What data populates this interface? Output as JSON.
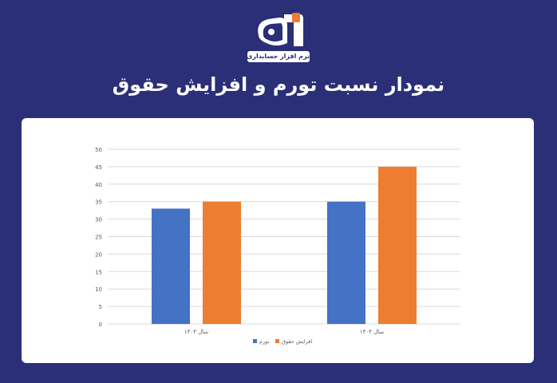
{
  "header": {
    "logo_icon": "fa-letters-logo-icon",
    "logo_caption": "نرم افزار حسابداری",
    "title": "نمودار نسبت تورم و افزایش حقوق"
  },
  "colors": {
    "background": "#2b2f78",
    "accent_orange": "#ed7d31",
    "accent_blue": "#4472c4"
  },
  "chart_data": {
    "type": "bar",
    "categories": [
      "سال ۱۴۰۳",
      "سال ۱۴۰۴"
    ],
    "series": [
      {
        "name": "تورم",
        "values": [
          33,
          35
        ],
        "color": "#4472c4"
      },
      {
        "name": "افزایش حقوق",
        "values": [
          35,
          45
        ],
        "color": "#ed7d31"
      }
    ],
    "ylim": [
      0,
      50
    ],
    "yticks": [
      0,
      5,
      10,
      15,
      20,
      25,
      30,
      35,
      40,
      45,
      50
    ],
    "grid": true,
    "legend_position": "bottom"
  }
}
